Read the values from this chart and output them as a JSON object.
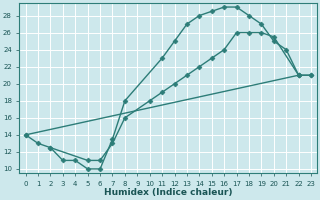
{
  "xlabel": "Humidex (Indice chaleur)",
  "bg_color": "#cde8ec",
  "grid_color": "#ffffff",
  "line_color": "#2d7d78",
  "xlim": [
    -0.5,
    23.5
  ],
  "ylim": [
    9.5,
    29.5
  ],
  "xticks": [
    0,
    1,
    2,
    3,
    4,
    5,
    6,
    7,
    8,
    9,
    10,
    11,
    12,
    13,
    14,
    15,
    16,
    17,
    18,
    19,
    20,
    21,
    22,
    23
  ],
  "yticks": [
    10,
    12,
    14,
    16,
    18,
    20,
    22,
    24,
    26,
    28
  ],
  "line1_x": [
    0,
    1,
    2,
    3,
    4,
    5,
    6,
    7,
    8,
    11,
    12,
    13,
    14,
    15,
    16,
    17,
    18,
    19,
    20,
    21,
    22
  ],
  "line1_y": [
    14,
    13,
    12.5,
    11,
    11,
    10,
    10,
    13.5,
    18,
    23,
    25,
    27,
    28,
    28.5,
    29,
    29,
    28,
    27,
    25,
    24,
    21
  ],
  "line2_x": [
    0,
    22,
    23
  ],
  "line2_y": [
    14,
    21,
    21
  ],
  "line3_x": [
    2,
    5,
    6,
    7,
    8,
    10,
    11,
    12,
    13,
    14,
    15,
    16,
    17,
    18,
    19,
    20,
    22,
    23
  ],
  "line3_y": [
    12.5,
    11,
    11,
    13,
    16,
    18,
    19,
    20,
    21,
    22,
    23,
    24,
    26,
    26,
    26,
    25.5,
    21,
    21
  ],
  "marker": "D",
  "markersize": 2.5,
  "linewidth": 1.0
}
